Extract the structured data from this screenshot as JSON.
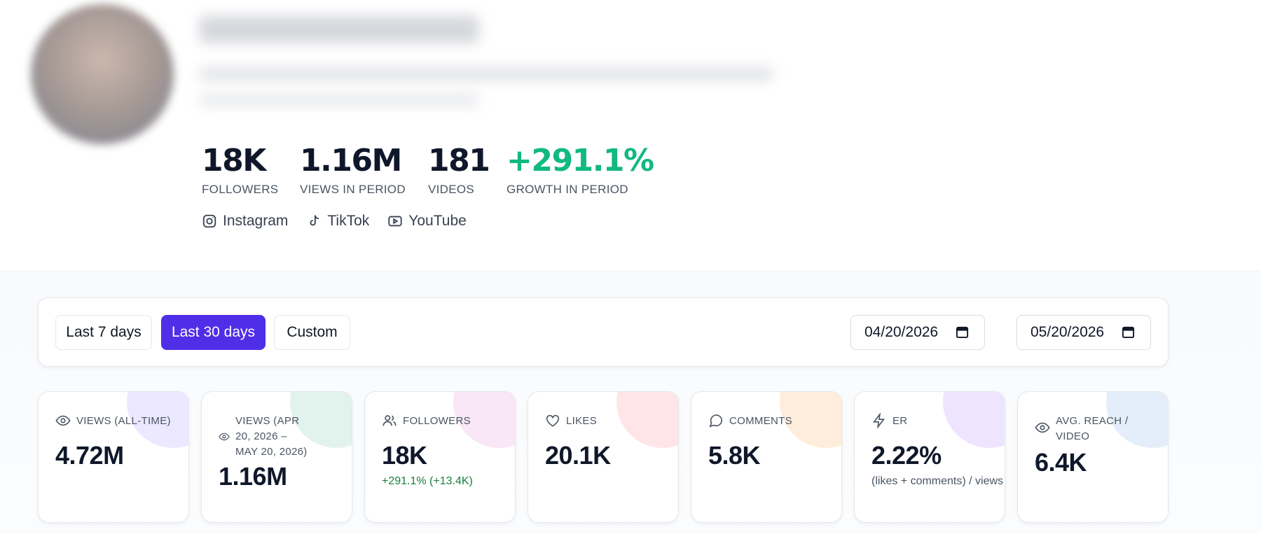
{
  "profile": {
    "stats": [
      {
        "value": "18K",
        "label": "FOLLOWERS"
      },
      {
        "value": "1.16M",
        "label": "VIEWS IN PERIOD"
      },
      {
        "value": "181",
        "label": "VIDEOS"
      },
      {
        "value": "+291.1%",
        "label": "GROWTH IN PERIOD"
      }
    ],
    "platforms": [
      {
        "label": "Instagram",
        "icon": "instagram-icon"
      },
      {
        "label": "TikTok",
        "icon": "tiktok-icon"
      },
      {
        "label": "YouTube",
        "icon": "youtube-icon"
      }
    ]
  },
  "filters": {
    "ranges": [
      "Last 7 days",
      "Last 30 days",
      "Custom"
    ],
    "active_range": "Last 30 days",
    "start_date": "04/20/2026",
    "end_date": "05/20/2026",
    "separator": "→"
  },
  "metrics": [
    {
      "icon": "eye-icon",
      "label": "VIEWS (ALL-TIME)",
      "value": "4.72M",
      "sub": ""
    },
    {
      "icon": "eye-icon",
      "label": "VIEWS (APR 20, 2026 – MAY 20, 2026)",
      "value": "1.16M",
      "sub": ""
    },
    {
      "icon": "users-icon",
      "label": "FOLLOWERS",
      "value": "18K",
      "sub": "+291.1% (+13.4K)"
    },
    {
      "icon": "heart-icon",
      "label": "LIKES",
      "value": "20.1K",
      "sub": ""
    },
    {
      "icon": "comment-icon",
      "label": "COMMENTS",
      "value": "5.8K",
      "sub": ""
    },
    {
      "icon": "bolt-icon",
      "label": "ER",
      "value": "2.22%",
      "sub": "(likes + comments) / views"
    },
    {
      "icon": "eye-icon",
      "label": "AVG. REACH / VIDEO",
      "value": "6.4K",
      "sub": ""
    }
  ],
  "colors": {
    "accent": "#4f2ee8",
    "growth": "#10b981",
    "card_blobs": [
      "#e9e4ff",
      "#ddf2ea",
      "#f9e4f5",
      "#ffe4e6",
      "#ffedd9",
      "#eee2ff",
      "#e2eefb"
    ]
  }
}
